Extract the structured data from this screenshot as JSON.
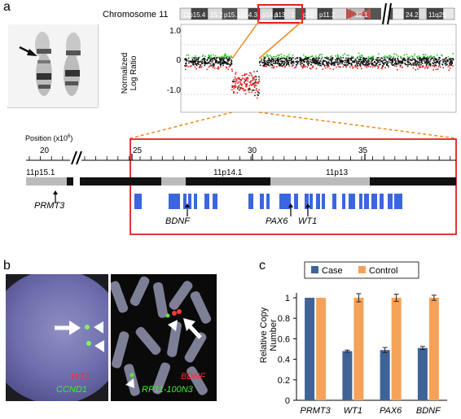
{
  "panels": {
    "a": "a",
    "b": "b",
    "c": "c"
  },
  "panel_a": {
    "chromosome_title": "Chromosome 11",
    "ideogram_bands": [
      "11p15.4",
      "15.2",
      "p15.1",
      "p14.3",
      "p14.1",
      "p13",
      "1",
      "p12",
      "p11.2",
      "12.1",
      "24.2",
      "11q25"
    ],
    "scatter": {
      "ylabel_line1": "Normalized",
      "ylabel_line2": "Log Ratio",
      "yticks": [
        "1.0",
        "0",
        "-1.0"
      ]
    },
    "position_label": "Position (x10",
    "position_exp": "6",
    "position_close": ")",
    "position_ticks": [
      "20",
      "25",
      "30",
      "35"
    ],
    "band_labels": [
      "11p15.1",
      "11p14.1",
      "11p13"
    ],
    "gene_labels": [
      "PRMT3",
      "BDNF",
      "PAX6",
      "WT1"
    ],
    "gene_color": "#3a66e0",
    "highlight_color": "#e02020",
    "zoom_color": "#f08a1c"
  },
  "panel_b": {
    "left_labels": {
      "gene1": "WT1",
      "gene2": "CCND1"
    },
    "right_labels": {
      "gene1": "BDNF",
      "gene2": "RP11-100N3"
    }
  },
  "chart_data": {
    "type": "bar",
    "categories": [
      "PRMT3",
      "WT1",
      "PAX6",
      "BDNF"
    ],
    "series": [
      {
        "name": "Case",
        "values": [
          1.0,
          0.48,
          0.49,
          0.51
        ],
        "color": "#3f6397"
      },
      {
        "name": "Control",
        "values": [
          1.0,
          1.0,
          1.0,
          1.0
        ],
        "color": "#f4a259"
      }
    ],
    "errors": {
      "Case": [
        0,
        0.01,
        0.025,
        0.015
      ],
      "Control": [
        0,
        0.04,
        0.035,
        0.025
      ]
    },
    "ylabel_line1": "Relative Copy",
    "ylabel_line2": "Number",
    "ylim": [
      0,
      1
    ],
    "yticks": [
      "0",
      "0.2",
      "0.4",
      "0.6",
      "0.8",
      "1"
    ],
    "legend": "top"
  }
}
